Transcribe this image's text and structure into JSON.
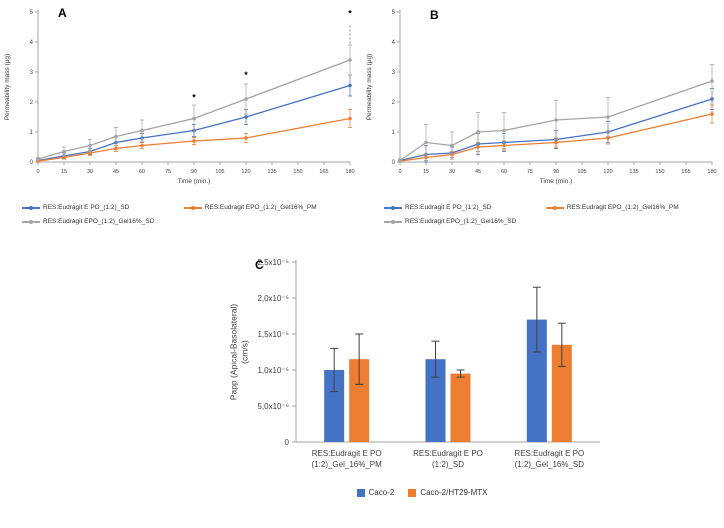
{
  "colors": {
    "blue": "#4472C4",
    "orange": "#ED7D31",
    "gray": "#A5A5A5"
  },
  "chart_data": [
    {
      "id": "A",
      "type": "line",
      "panel_label": "A",
      "xlabel": "Time (min.)",
      "ylabel": "Permeability mass (μg)",
      "ylim": [
        0,
        5
      ],
      "yticks": [
        0,
        1,
        2,
        3,
        4,
        5
      ],
      "xticks": [
        0,
        15,
        30,
        45,
        60,
        75,
        90,
        105,
        120,
        135,
        150,
        165,
        180
      ],
      "x": [
        0,
        15,
        30,
        45,
        60,
        90,
        120,
        180
      ],
      "grid": false,
      "legend_position": "bottom",
      "series": [
        {
          "name": "RES:Eudragit E PO_(1:2)_SD",
          "color": "#4472C4",
          "values": [
            0.05,
            0.2,
            0.35,
            0.65,
            0.8,
            1.05,
            1.5,
            2.55
          ],
          "errors": [
            0.05,
            0.1,
            0.1,
            0.2,
            0.15,
            0.2,
            0.25,
            0.35
          ]
        },
        {
          "name": "RES:Eudragit EPO_(1:2)_Gel16%_PM",
          "color": "#ED7D31",
          "values": [
            0.03,
            0.15,
            0.3,
            0.45,
            0.55,
            0.7,
            0.8,
            1.45
          ],
          "errors": [
            0.03,
            0.05,
            0.08,
            0.1,
            0.1,
            0.12,
            0.15,
            0.3
          ]
        },
        {
          "name": "RES:Eudragit EPO_(1:2)_Gel16%_SD",
          "color": "#A5A5A5",
          "values": [
            0.1,
            0.35,
            0.55,
            0.85,
            1.05,
            1.45,
            2.1,
            3.4
          ],
          "errors": [
            0.05,
            0.15,
            0.2,
            0.3,
            0.35,
            0.45,
            0.5,
            0.5
          ]
        }
      ],
      "annotations": [
        {
          "x": 90,
          "y": 2.05,
          "text": "*"
        },
        {
          "x": 120,
          "y": 2.8,
          "text": "*"
        },
        {
          "x": 180,
          "y": 4.85,
          "text": "*",
          "line": [
            3.95,
            4.55
          ]
        }
      ]
    },
    {
      "id": "B",
      "type": "line",
      "panel_label": "B",
      "xlabel": "Time (min.)",
      "ylabel": "Permeability mass (μg)",
      "ylim": [
        0,
        5
      ],
      "yticks": [
        0,
        1,
        2,
        3,
        4,
        5
      ],
      "xticks": [
        0,
        15,
        30,
        45,
        60,
        75,
        90,
        105,
        120,
        135,
        150,
        165,
        180
      ],
      "x": [
        0,
        15,
        30,
        45,
        60,
        90,
        120,
        180
      ],
      "grid": false,
      "legend_position": "bottom",
      "series": [
        {
          "name": "RES:Eudragit E PO_(1:2)_SD",
          "color": "#4472C4",
          "values": [
            0.05,
            0.25,
            0.3,
            0.6,
            0.65,
            0.75,
            1.0,
            2.1
          ],
          "errors": [
            0.05,
            0.3,
            0.2,
            0.35,
            0.3,
            0.3,
            0.35,
            0.35
          ]
        },
        {
          "name": "RES:Eudragit EPO_(1:2)_Gel16%_PM",
          "color": "#ED7D31",
          "values": [
            0.03,
            0.15,
            0.25,
            0.5,
            0.55,
            0.65,
            0.8,
            1.6
          ],
          "errors": [
            0.03,
            0.1,
            0.1,
            0.15,
            0.15,
            0.15,
            0.2,
            0.3
          ]
        },
        {
          "name": "RES:Eudragit EPO_(1:2)_Gel16%_SD",
          "color": "#A5A5A5",
          "values": [
            0.05,
            0.65,
            0.55,
            1.0,
            1.05,
            1.4,
            1.5,
            2.7
          ],
          "errors": [
            0.05,
            0.6,
            0.45,
            0.65,
            0.6,
            0.65,
            0.65,
            0.55
          ]
        }
      ],
      "annotations": []
    },
    {
      "id": "C",
      "type": "bar",
      "panel_label": "C",
      "ylabel": "Papp (Apical-Basolateral)\n(cm/s)",
      "ylim": [
        0,
        2.5e-05
      ],
      "yticks": [
        {
          "v": 0,
          "label": "0"
        },
        {
          "v": 5e-06,
          "label": "5,0x10⁻⁶"
        },
        {
          "v": 1e-05,
          "label": "1,0x10⁻⁵"
        },
        {
          "v": 1.5e-05,
          "label": "1,5x10⁻⁵"
        },
        {
          "v": 2e-05,
          "label": "2,0x10⁻⁵"
        },
        {
          "v": 2.5e-05,
          "label": "2,5x10⁻⁵"
        }
      ],
      "categories": [
        "RES:Eudragit E PO\n(1:2)_Gel_16%_PM",
        "RES:Eudragit E PO\n(1:2)_SD",
        "RES:Eudragit E PO\n(1:2)_Gel_16%_SD"
      ],
      "grid": false,
      "legend_position": "bottom",
      "series": [
        {
          "name": "Caco-2",
          "color": "#4472C4",
          "values": [
            1e-05,
            1.15e-05,
            1.7e-05
          ],
          "errors": [
            3e-06,
            2.5e-06,
            4.5e-06
          ]
        },
        {
          "name": "Caco-2/HT29-MTX",
          "color": "#ED7D31",
          "values": [
            1.15e-05,
            9.5e-06,
            1.35e-05
          ],
          "errors": [
            3.5e-06,
            5e-07,
            3e-06
          ]
        }
      ]
    }
  ]
}
